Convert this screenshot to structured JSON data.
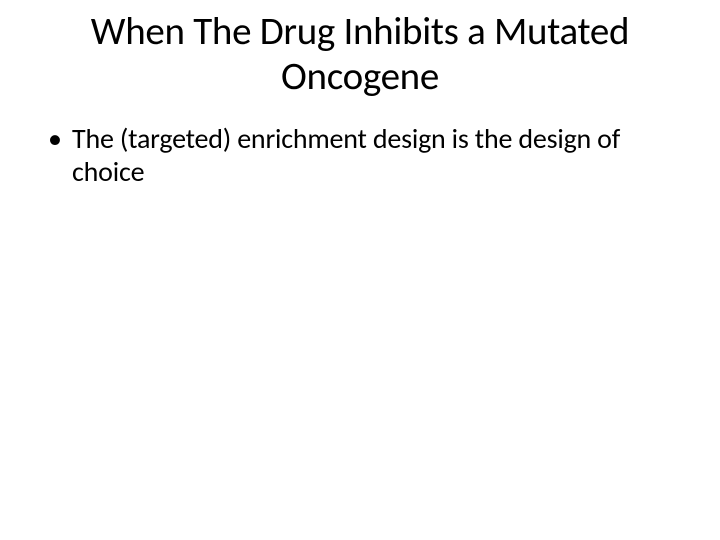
{
  "slide": {
    "title": "When The Drug Inhibits a Mutated Oncogene",
    "bullets": [
      "The (targeted) enrichment design is the design of choice"
    ],
    "colors": {
      "background": "#ffffff",
      "text": "#000000"
    },
    "typography": {
      "title_fontsize": 39,
      "body_fontsize": 28,
      "font_family": "Calibri"
    }
  }
}
